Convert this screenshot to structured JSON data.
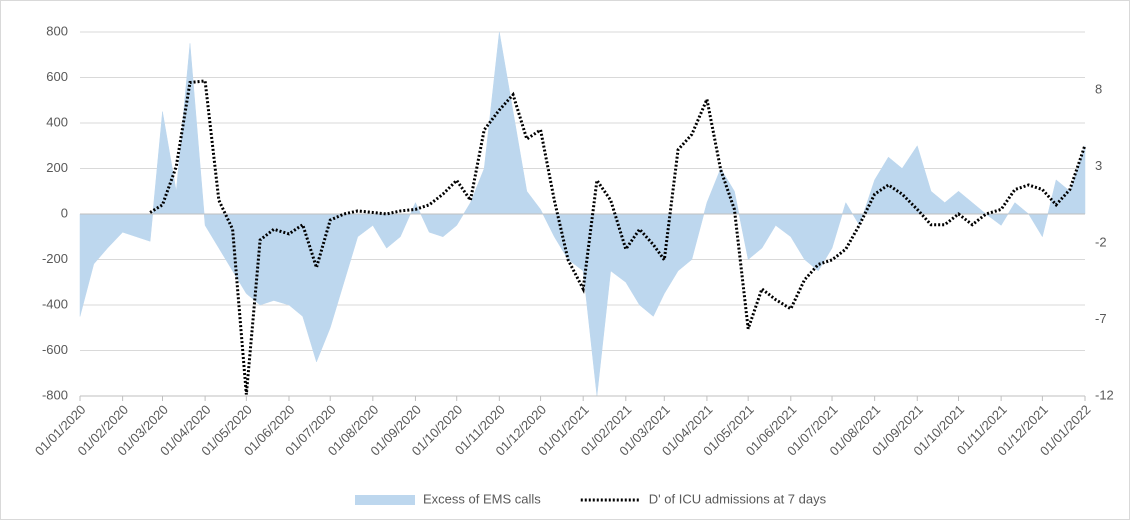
{
  "chart_data": {
    "type": "area-line",
    "x": [
      "01/01/2020",
      "11/01/2020",
      "21/01/2020",
      "01/02/2020",
      "11/02/2020",
      "21/02/2020",
      "01/03/2020",
      "11/03/2020",
      "21/03/2020",
      "01/04/2020",
      "11/04/2020",
      "21/04/2020",
      "01/05/2020",
      "11/05/2020",
      "21/05/2020",
      "01/06/2020",
      "11/06/2020",
      "21/06/2020",
      "01/07/2020",
      "11/07/2020",
      "21/07/2020",
      "01/08/2020",
      "11/08/2020",
      "21/08/2020",
      "01/09/2020",
      "11/09/2020",
      "21/09/2020",
      "01/10/2020",
      "11/10/2020",
      "21/10/2020",
      "01/11/2020",
      "11/11/2020",
      "21/11/2020",
      "01/12/2020",
      "11/12/2020",
      "21/12/2020",
      "01/01/2021",
      "11/01/2021",
      "21/01/2021",
      "01/02/2021",
      "11/02/2021",
      "21/02/2021",
      "01/03/2021",
      "11/03/2021",
      "21/03/2021",
      "01/04/2021",
      "11/04/2021",
      "21/04/2021",
      "01/05/2021",
      "11/05/2021",
      "21/05/2021",
      "01/06/2021",
      "11/06/2021",
      "21/06/2021",
      "01/07/2021",
      "11/07/2021",
      "21/07/2021",
      "01/08/2021",
      "11/08/2021",
      "21/08/2021",
      "01/09/2021",
      "11/09/2021",
      "21/09/2021",
      "01/10/2021",
      "11/10/2021",
      "21/10/2021",
      "01/11/2021",
      "11/11/2021",
      "21/11/2021",
      "01/12/2021",
      "11/12/2021",
      "21/12/2021",
      "01/01/2022"
    ],
    "series": [
      {
        "name": "Excess of EMS calls",
        "color": "#bdd7ee",
        "axis": "y",
        "values": [
          -450,
          -220,
          -150,
          -80,
          -100,
          -120,
          450,
          100,
          750,
          -50,
          -150,
          -250,
          -350,
          -400,
          -380,
          -400,
          -450,
          -650,
          -500,
          -300,
          -100,
          -50,
          -150,
          -100,
          50,
          -80,
          -100,
          -50,
          50,
          200,
          800,
          450,
          100,
          20,
          -100,
          -200,
          -250,
          -800,
          -250,
          -300,
          -400,
          -450,
          -350,
          -250,
          -200,
          50,
          200,
          100,
          -200,
          -150,
          -50,
          -100,
          -200,
          -250,
          -150,
          50,
          -50,
          150,
          250,
          200,
          300,
          100,
          50,
          100,
          50,
          0,
          -50,
          50,
          0,
          -100,
          150,
          100,
          300
        ]
      },
      {
        "name": "D' of ICU admissions at 7 days",
        "color": "#000000",
        "axis": "y2",
        "values": [
          null,
          null,
          null,
          null,
          null,
          0,
          0.5,
          3,
          8.5,
          8.6,
          0.8,
          -1.1,
          -11.9,
          -1.8,
          -1.1,
          -1.4,
          -0.8,
          -3.6,
          -0.5,
          -0.1,
          0.1,
          0,
          -0.1,
          0.1,
          0.2,
          0.5,
          1.2,
          2.1,
          0.8,
          5.4,
          6.7,
          7.7,
          4.8,
          5.4,
          0.8,
          -3.1,
          -5,
          2.1,
          0.8,
          -2.4,
          -1.1,
          -2.1,
          -3.1,
          4.1,
          5.1,
          7.4,
          2.8,
          0.2,
          -7.6,
          -5,
          -5.7,
          -6.3,
          -4.4,
          -3.4,
          -3.1,
          -2.4,
          -0.8,
          1.2,
          1.8,
          1.2,
          0.2,
          -0.8,
          -0.8,
          -0.1,
          -0.8,
          -0.1,
          0.2,
          1.5,
          1.8,
          1.5,
          0.5,
          1.5,
          4.4
        ]
      }
    ],
    "xticks": [
      "01/01/2020",
      "01/02/2020",
      "01/03/2020",
      "01/04/2020",
      "01/05/2020",
      "01/06/2020",
      "01/07/2020",
      "01/08/2020",
      "01/09/2020",
      "01/10/2020",
      "01/11/2020",
      "01/12/2020",
      "01/01/2021",
      "01/02/2021",
      "01/03/2021",
      "01/04/2021",
      "01/05/2021",
      "01/06/2021",
      "01/07/2021",
      "01/08/2021",
      "01/09/2021",
      "01/10/2021",
      "01/11/2021",
      "01/12/2021",
      "01/01/2022"
    ],
    "ylim": [
      -800,
      800
    ],
    "yticks": [
      -800,
      -600,
      -400,
      -200,
      0,
      200,
      400,
      600,
      800
    ],
    "y2lim": [
      -12,
      11.8
    ],
    "y2ticks": [
      -12,
      -7,
      -2,
      3,
      8
    ],
    "grid": true,
    "legend": "bottom"
  }
}
